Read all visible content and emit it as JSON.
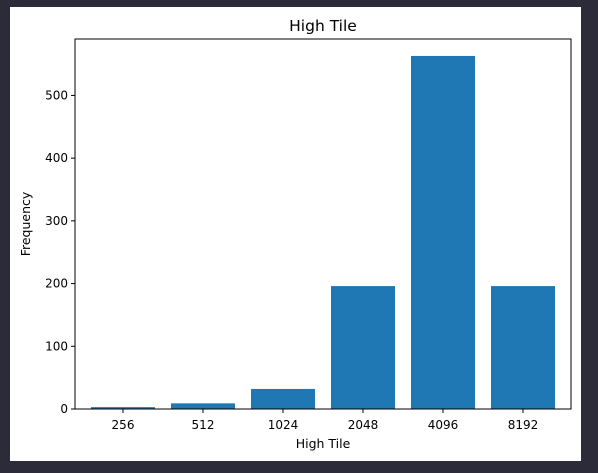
{
  "colors": {
    "background": "#2b2b3a",
    "figure": "#ffffff",
    "bar": "#1f77b4",
    "axis": "#000000"
  },
  "chart_data": {
    "type": "bar",
    "title": "High Tile",
    "xlabel": "High Tile",
    "ylabel": "Frequency",
    "categories": [
      "256",
      "512",
      "1024",
      "2048",
      "4096",
      "8192"
    ],
    "values": [
      3,
      9,
      32,
      196,
      563,
      196
    ],
    "ylim": [
      0,
      590
    ],
    "yticks": [
      0,
      100,
      200,
      300,
      400,
      500
    ],
    "grid": false,
    "legend": "none"
  }
}
